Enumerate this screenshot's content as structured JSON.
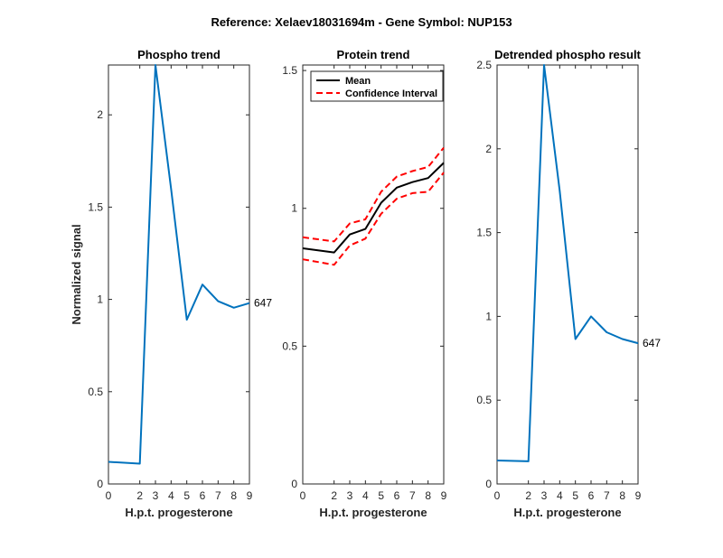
{
  "figure": {
    "suptitle": "Reference:  Xelaev18031694m - Gene Symbol:  NUP153"
  },
  "chart_data": [
    {
      "type": "line",
      "title": "Phospho trend",
      "xlabel": "H.p.t. progesterone",
      "ylabel": "Normalized signal",
      "x": [
        0,
        2,
        3,
        4,
        5,
        6,
        7,
        8,
        9
      ],
      "xticks": [
        0,
        2,
        3,
        4,
        5,
        6,
        7,
        8,
        9
      ],
      "yticks": [
        0,
        0.5,
        1,
        1.5,
        2
      ],
      "ytick_labels": [
        "0",
        "0.5",
        "1",
        "1.5",
        "2"
      ],
      "ylim": [
        0,
        2.27
      ],
      "series": [
        {
          "values": [
            0.12,
            0.11,
            2.27,
            1.6,
            0.89,
            1.08,
            0.99,
            0.955,
            0.98
          ],
          "color": "#0072BD"
        }
      ],
      "end_label": "647"
    },
    {
      "type": "line",
      "title": "Protein trend",
      "xlabel": "H.p.t. progesterone",
      "ylabel": "",
      "x": [
        0,
        2,
        3,
        4,
        5,
        6,
        7,
        8,
        9
      ],
      "xticks": [
        0,
        2,
        3,
        4,
        5,
        6,
        7,
        8,
        9
      ],
      "yticks": [
        0,
        0.5,
        1,
        1.5
      ],
      "ytick_labels": [
        "0",
        "0.5",
        "1",
        "1.5"
      ],
      "ylim": [
        0,
        1.52
      ],
      "legend": {
        "placement": "top-left",
        "entries": [
          "Mean",
          "Confidence Interval"
        ]
      },
      "series": [
        {
          "name": "Mean",
          "values": [
            0.855,
            0.84,
            0.905,
            0.925,
            1.02,
            1.075,
            1.095,
            1.11,
            1.165
          ],
          "color": "#000000",
          "dash": "solid"
        },
        {
          "name": "Confidence Interval",
          "values": [
            0.895,
            0.88,
            0.945,
            0.96,
            1.06,
            1.115,
            1.135,
            1.15,
            1.22
          ],
          "color": "#FF0000",
          "dash": "dashed"
        },
        {
          "name": "Confidence Interval",
          "values": [
            0.815,
            0.795,
            0.865,
            0.89,
            0.98,
            1.035,
            1.055,
            1.06,
            1.13
          ],
          "color": "#FF0000",
          "dash": "dashed"
        }
      ]
    },
    {
      "type": "line",
      "title": "Detrended phospho result",
      "xlabel": "H.p.t. progesterone",
      "ylabel": "",
      "x": [
        0,
        2,
        3,
        4,
        5,
        6,
        7,
        8,
        9
      ],
      "xticks": [
        0,
        2,
        3,
        4,
        5,
        6,
        7,
        8,
        9
      ],
      "yticks": [
        0,
        0.5,
        1,
        1.5,
        2,
        2.5
      ],
      "ytick_labels": [
        "0",
        "0.5",
        "1",
        "1.5",
        "2",
        "2.5"
      ],
      "ylim": [
        0,
        2.5
      ],
      "series": [
        {
          "values": [
            0.14,
            0.135,
            2.5,
            1.75,
            0.865,
            1.0,
            0.905,
            0.865,
            0.84
          ],
          "color": "#0072BD"
        }
      ],
      "end_label": "647"
    }
  ]
}
